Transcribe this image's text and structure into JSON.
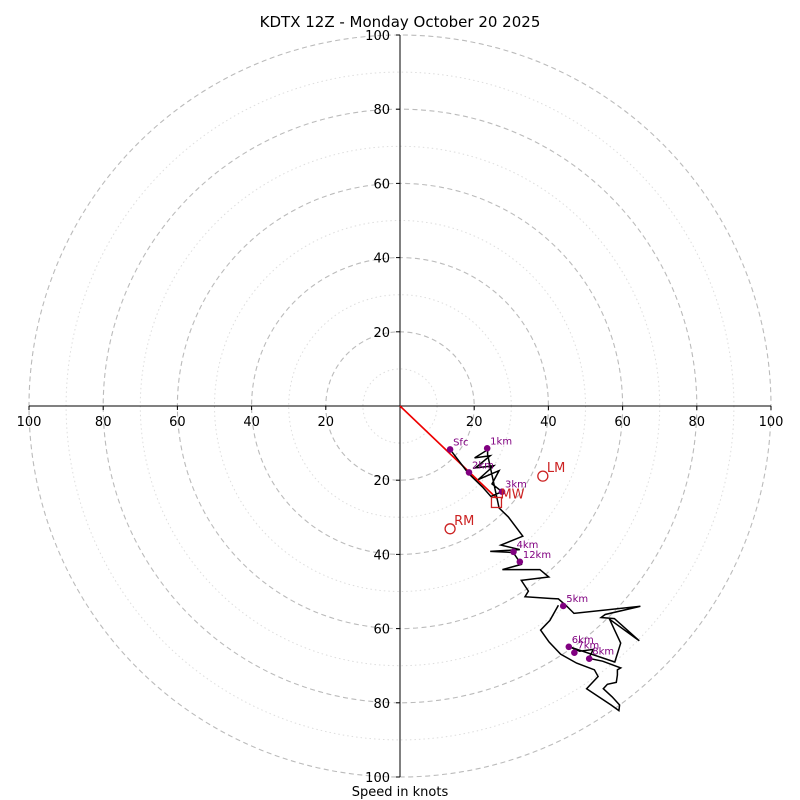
{
  "chart_data": {
    "type": "hodograph",
    "title": "KDTX 12Z - Monday October 20 2025",
    "xlabel": "Speed in knots",
    "xlim": [
      -100,
      100
    ],
    "ylim": [
      -100,
      100
    ],
    "ring_major": [
      20,
      40,
      60,
      80,
      100
    ],
    "ring_minor": [
      10,
      30,
      50,
      70,
      90
    ],
    "tick_labels": {
      "x_left": [
        "100",
        "80",
        "60",
        "40",
        "20"
      ],
      "x_right": [
        "20",
        "40",
        "60",
        "80",
        "100"
      ],
      "y_top": [
        "100",
        "80",
        "60",
        "40",
        "20"
      ],
      "y_bottom": [
        "20",
        "40",
        "60",
        "80",
        "100"
      ]
    },
    "profile": [
      [
        13.5,
        -11.7
      ],
      [
        18.4,
        -18.1
      ],
      [
        22.2,
        -21.8
      ],
      [
        24.5,
        -24.4
      ],
      [
        27.5,
        -23.1
      ],
      [
        24.8,
        -21
      ],
      [
        26.7,
        -17.4
      ],
      [
        21.1,
        -19.8
      ],
      [
        25.3,
        -16.1
      ],
      [
        20.3,
        -16.7
      ],
      [
        24.3,
        -13.4
      ],
      [
        20.1,
        -14
      ],
      [
        23.6,
        -11.8
      ],
      [
        23.6,
        -13.1
      ],
      [
        26.7,
        -27.5
      ],
      [
        29.2,
        -29.9
      ],
      [
        33.1,
        -35.1
      ],
      [
        27.2,
        -37.5
      ],
      [
        32.3,
        -38.7
      ],
      [
        24.3,
        -39.2
      ],
      [
        30.5,
        -39.5
      ],
      [
        32.7,
        -42.7
      ],
      [
        27.6,
        -44.1
      ],
      [
        37.7,
        -44.1
      ],
      [
        40.1,
        -46.1
      ],
      [
        32.7,
        -47
      ],
      [
        34.6,
        -49.9
      ],
      [
        33.7,
        -51.4
      ],
      [
        40.7,
        -51.9
      ],
      [
        42.7,
        -52
      ],
      [
        44.9,
        -53.9
      ],
      [
        46.9,
        -55.9
      ],
      [
        64.8,
        -54
      ],
      [
        55.3,
        -56.2
      ],
      [
        54.2,
        -57
      ],
      [
        57.8,
        -57.3
      ],
      [
        64.5,
        -63.3
      ],
      [
        56.5,
        -57.5
      ],
      [
        59.5,
        -63.9
      ],
      [
        57.9,
        -69
      ],
      [
        45.7,
        -64.9
      ],
      [
        48.4,
        -66.1
      ],
      [
        52.1,
        -65.6
      ],
      [
        50.9,
        -68
      ],
      [
        54.6,
        -68.8
      ],
      [
        59.5,
        -70.6
      ],
      [
        58.6,
        -71.1
      ],
      [
        58.6,
        -72.5
      ],
      [
        58.3,
        -74.5
      ],
      [
        55.9,
        -75
      ],
      [
        54.8,
        -76.2
      ],
      [
        57.2,
        -78.4
      ],
      [
        59.2,
        -80.6
      ],
      [
        59,
        -82.1
      ],
      [
        56.9,
        -80.6
      ],
      [
        50.3,
        -76.2
      ],
      [
        53.4,
        -72.9
      ],
      [
        52.4,
        -71.1
      ],
      [
        47.6,
        -69.3
      ],
      [
        43.3,
        -66.9
      ],
      [
        40.2,
        -63.6
      ],
      [
        37.9,
        -60.4
      ],
      [
        40.4,
        -57.8
      ],
      [
        42.7,
        -53.7
      ]
    ],
    "height_markers": [
      {
        "label": "Sfc",
        "x": 13.5,
        "y": -11.7
      },
      {
        "label": "1km",
        "x": 23.5,
        "y": -11.4
      },
      {
        "label": "2km",
        "x": 18.6,
        "y": -17.9
      },
      {
        "label": "3km",
        "x": 27.5,
        "y": -23.1
      },
      {
        "label": "4km",
        "x": 30.6,
        "y": -39.3
      },
      {
        "label": "12km",
        "x": 32.3,
        "y": -42.0
      },
      {
        "label": "5km",
        "x": 44.0,
        "y": -53.9
      },
      {
        "label": "6km",
        "x": 45.5,
        "y": -64.9
      },
      {
        "label": "7km",
        "x": 47.0,
        "y": -66.5
      },
      {
        "label": "8km",
        "x": 51.0,
        "y": -68.1
      }
    ],
    "storm_motion": [
      {
        "label": "LM",
        "x": 38.5,
        "y": -18.9
      },
      {
        "label": "RM",
        "x": 13.5,
        "y": -33.1
      },
      {
        "label": "MW",
        "x": 26.0,
        "y": -26.0
      }
    ],
    "storm_motion_vector": {
      "x": 26.0,
      "y": -24.8
    },
    "colors": {
      "profile": "#000000",
      "marker": "#800080",
      "storm_motion": "#cc2222",
      "vector": "#ee0000",
      "grid": "#bbbbbb",
      "grid_minor": "#dddddd"
    }
  }
}
